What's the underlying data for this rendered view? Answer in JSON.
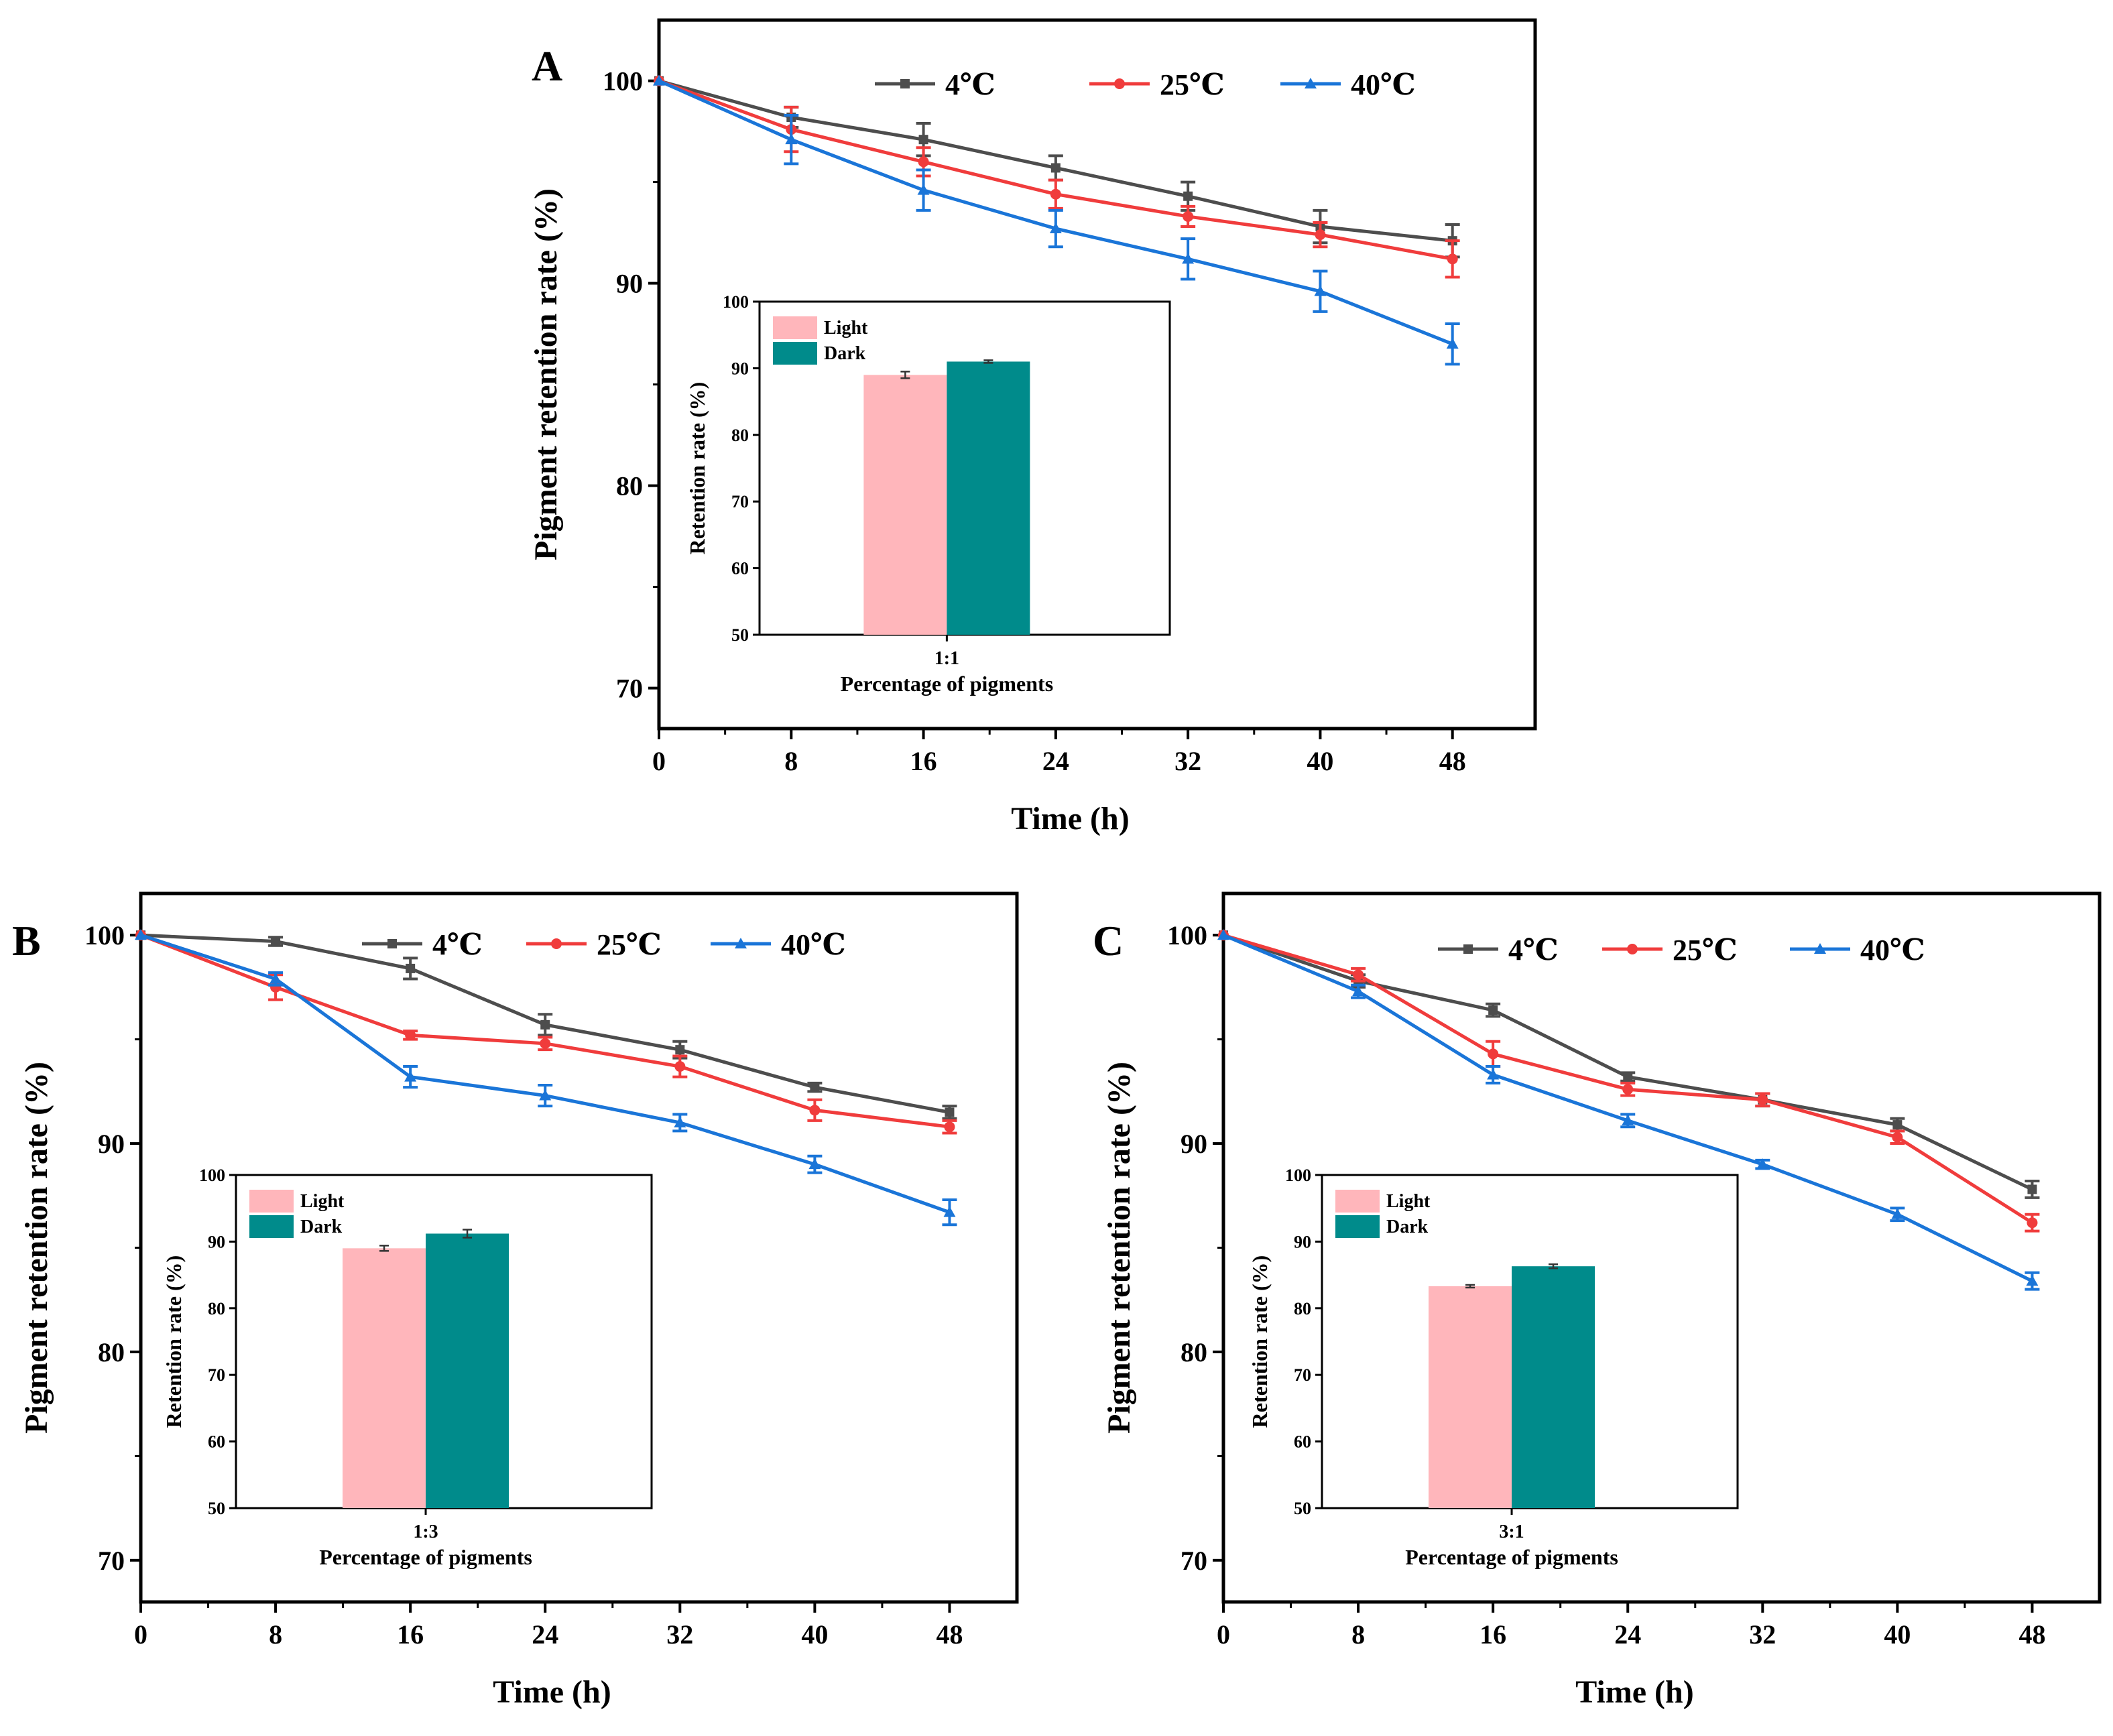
{
  "figure": {
    "panels": [
      {
        "label": "A",
        "ratio_label": "1:1",
        "chart_data": {
          "type": "line",
          "x": [
            0,
            8,
            16,
            24,
            32,
            40,
            48
          ],
          "xlabel": "Time (h)",
          "ylabel": "Pigment retention rate (%)",
          "xlim": [
            0,
            53
          ],
          "ylim": [
            68,
            103
          ],
          "xticks": [
            0,
            8,
            16,
            24,
            32,
            40,
            48
          ],
          "yticks": [
            70,
            80,
            90,
            100
          ],
          "legend": "top-right",
          "series": [
            {
              "name": "4℃",
              "color": "#4d4d4d",
              "marker": "square",
              "values": [
                100,
                98.2,
                97.1,
                95.7,
                94.3,
                92.8,
                92.1
              ],
              "errors": [
                0,
                0.5,
                0.8,
                0.6,
                0.7,
                0.8,
                0.8
              ]
            },
            {
              "name": "25℃",
              "color": "#f03c3c",
              "marker": "circle",
              "values": [
                100,
                97.6,
                96.0,
                94.4,
                93.3,
                92.4,
                91.2
              ],
              "errors": [
                0,
                1.1,
                0.7,
                0.7,
                0.5,
                0.6,
                0.9
              ]
            },
            {
              "name": "40℃",
              "color": "#1a75d8",
              "marker": "triangle",
              "values": [
                100,
                97.1,
                94.6,
                92.7,
                91.2,
                89.6,
                87.0
              ],
              "errors": [
                0,
                1.2,
                1.0,
                0.9,
                1.0,
                1.0,
                1.0
              ]
            }
          ],
          "inset": {
            "type": "bar",
            "category": "1:1",
            "xlabel": "Percentage of pigments",
            "ylabel": "Retention rate (%)",
            "ylim": [
              50,
              100
            ],
            "yticks": [
              50,
              60,
              70,
              80,
              90,
              100
            ],
            "series": [
              {
                "name": "Light",
                "color": "#ffb6bb",
                "value": 89.0,
                "error": 0.5
              },
              {
                "name": "Dark",
                "color": "#008b8b",
                "value": 91.0,
                "error": 0.2
              }
            ]
          }
        }
      },
      {
        "label": "B",
        "ratio_label": "1:3",
        "chart_data": {
          "type": "line",
          "x": [
            0,
            8,
            16,
            24,
            32,
            40,
            48
          ],
          "xlabel": "Time (h)",
          "ylabel": "Pigment retention rate (%)",
          "xlim": [
            0,
            52
          ],
          "ylim": [
            68,
            102
          ],
          "xticks": [
            0,
            8,
            16,
            24,
            32,
            40,
            48
          ],
          "yticks": [
            70,
            80,
            90,
            100
          ],
          "legend": "top-right",
          "series": [
            {
              "name": "4℃",
              "color": "#4d4d4d",
              "marker": "square",
              "values": [
                100,
                99.7,
                98.4,
                95.7,
                94.5,
                92.7,
                91.5
              ],
              "errors": [
                0,
                0.2,
                0.5,
                0.5,
                0.4,
                0.2,
                0.3
              ]
            },
            {
              "name": "25℃",
              "color": "#f03c3c",
              "marker": "circle",
              "values": [
                100,
                97.5,
                95.2,
                94.8,
                93.7,
                91.6,
                90.8
              ],
              "errors": [
                0,
                0.6,
                0.2,
                0.3,
                0.5,
                0.5,
                0.3
              ]
            },
            {
              "name": "40℃",
              "color": "#1a75d8",
              "marker": "triangle",
              "values": [
                100,
                97.9,
                93.2,
                92.3,
                91.0,
                89.0,
                86.7
              ],
              "errors": [
                0,
                0.3,
                0.5,
                0.5,
                0.4,
                0.4,
                0.6
              ]
            }
          ],
          "inset": {
            "type": "bar",
            "category": "1:3",
            "xlabel": "Percentage of pigments",
            "ylabel": "Retention rate (%)",
            "ylim": [
              50,
              100
            ],
            "yticks": [
              50,
              60,
              70,
              80,
              90,
              100
            ],
            "series": [
              {
                "name": "Light",
                "color": "#ffb6bb",
                "value": 89.0,
                "error": 0.4
              },
              {
                "name": "Dark",
                "color": "#008b8b",
                "value": 91.2,
                "error": 0.6
              }
            ]
          }
        }
      },
      {
        "label": "C",
        "ratio_label": "3:1",
        "chart_data": {
          "type": "line",
          "x": [
            0,
            8,
            16,
            24,
            32,
            40,
            48
          ],
          "xlabel": "Time (h)",
          "ylabel": "Pigment retention rate (%)",
          "xlim": [
            0,
            52
          ],
          "ylim": [
            68,
            102
          ],
          "xticks": [
            0,
            8,
            16,
            24,
            32,
            40,
            48
          ],
          "yticks": [
            70,
            80,
            90,
            100
          ],
          "legend": "top-right",
          "series": [
            {
              "name": "4℃",
              "color": "#4d4d4d",
              "marker": "square",
              "values": [
                100,
                97.8,
                96.4,
                93.2,
                92.1,
                90.9,
                87.8
              ],
              "errors": [
                0,
                0.3,
                0.3,
                0.2,
                0.3,
                0.3,
                0.4
              ]
            },
            {
              "name": "25℃",
              "color": "#f03c3c",
              "marker": "circle",
              "values": [
                100,
                98.1,
                94.3,
                92.6,
                92.1,
                90.3,
                86.2
              ],
              "errors": [
                0,
                0.3,
                0.6,
                0.3,
                0.3,
                0.3,
                0.4
              ]
            },
            {
              "name": "40℃",
              "color": "#1a75d8",
              "marker": "triangle",
              "values": [
                100,
                97.3,
                93.3,
                91.1,
                89.0,
                86.6,
                83.4
              ],
              "errors": [
                0,
                0.3,
                0.4,
                0.3,
                0.2,
                0.3,
                0.4
              ]
            }
          ],
          "inset": {
            "type": "bar",
            "category": "3:1",
            "xlabel": "Percentage of pigments",
            "ylabel": "Retention rate (%)",
            "ylim": [
              50,
              100
            ],
            "yticks": [
              50,
              60,
              70,
              80,
              90,
              100
            ],
            "series": [
              {
                "name": "Light",
                "color": "#ffb6bb",
                "value": 83.3,
                "error": 0.2
              },
              {
                "name": "Dark",
                "color": "#008b8b",
                "value": 86.3,
                "error": 0.3
              }
            ]
          }
        }
      }
    ]
  }
}
